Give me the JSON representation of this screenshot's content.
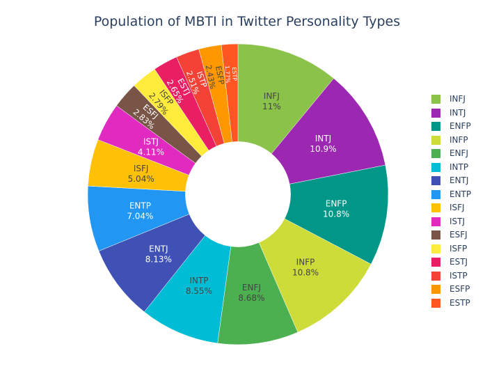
{
  "chart_data": {
    "type": "pie",
    "title": "Population of MBTI in Twitter Personality Types",
    "hole": 0.35,
    "legend_position": "right",
    "labels": [
      "INFJ",
      "INTJ",
      "ENFP",
      "INFP",
      "ENFJ",
      "INTP",
      "ENTJ",
      "ENTP",
      "ISFJ",
      "ISTJ",
      "ESFJ",
      "ISFP",
      "ESTJ",
      "ISTP",
      "ESFP",
      "ESTP"
    ],
    "values": [
      11,
      10.9,
      10.8,
      10.8,
      8.68,
      8.55,
      8.13,
      7.04,
      5.04,
      4.11,
      2.83,
      2.79,
      2.65,
      2.51,
      2.43,
      1.77
    ],
    "percent_labels": [
      "11%",
      "10.9%",
      "10.8%",
      "10.8%",
      "8.68%",
      "8.55%",
      "8.13%",
      "7.04%",
      "5.04%",
      "4.11%",
      "2.83%",
      "2.79%",
      "2.65%",
      "2.51%",
      "2.43%",
      "1.77%"
    ],
    "colors": [
      "#8bc34a",
      "#9c27b0",
      "#009688",
      "#cddc39",
      "#4caf50",
      "#00bcd4",
      "#3f51b5",
      "#2196f3",
      "#ffc107",
      "#e02ac0",
      "#795548",
      "#ffeb3b",
      "#e91e63",
      "#f44336",
      "#ff9800",
      "#ff5722"
    ],
    "text_colors": [
      "#444444",
      "#ffffff",
      "#ffffff",
      "#444444",
      "#444444",
      "#444444",
      "#ffffff",
      "#ffffff",
      "#444444",
      "#ffffff",
      "#ffffff",
      "#444444",
      "#ffffff",
      "#ffffff",
      "#444444",
      "#ffffff"
    ]
  }
}
